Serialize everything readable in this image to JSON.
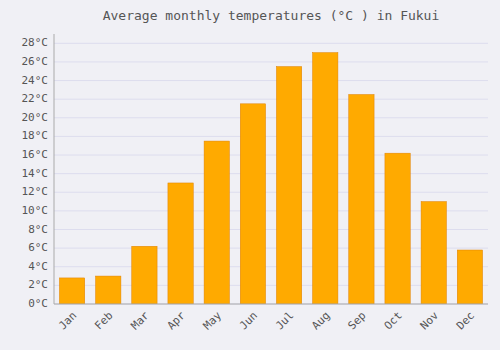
{
  "chart_data": {
    "type": "bar",
    "title": "Average monthly temperatures (°C ) in Fukui",
    "categories": [
      "Jan",
      "Feb",
      "Mar",
      "Apr",
      "May",
      "Jun",
      "Jul",
      "Aug",
      "Sep",
      "Oct",
      "Nov",
      "Dec"
    ],
    "values": [
      2.8,
      3.0,
      6.2,
      13.0,
      17.5,
      21.5,
      25.5,
      27.0,
      22.5,
      16.2,
      11.0,
      5.8
    ],
    "color": "#FFAA00",
    "ylim": [
      0,
      29
    ],
    "yticks": [
      {
        "value": 0,
        "label": "0°C"
      },
      {
        "value": 2,
        "label": "2°C"
      },
      {
        "value": 4,
        "label": "4°C"
      },
      {
        "value": 6,
        "label": "6°C"
      },
      {
        "value": 8,
        "label": "8°C"
      },
      {
        "value": 10,
        "label": "10°C"
      },
      {
        "value": 12,
        "label": "12°C"
      },
      {
        "value": 14,
        "label": "14°C"
      },
      {
        "value": 16,
        "label": "16°C"
      },
      {
        "value": 18,
        "label": "18°C"
      },
      {
        "value": 20,
        "label": "20°C"
      },
      {
        "value": 22,
        "label": "22°C"
      },
      {
        "value": 24,
        "label": "24°C"
      },
      {
        "value": 26,
        "label": "26°C"
      },
      {
        "value": 28,
        "label": "28°C"
      }
    ],
    "grid": true
  }
}
